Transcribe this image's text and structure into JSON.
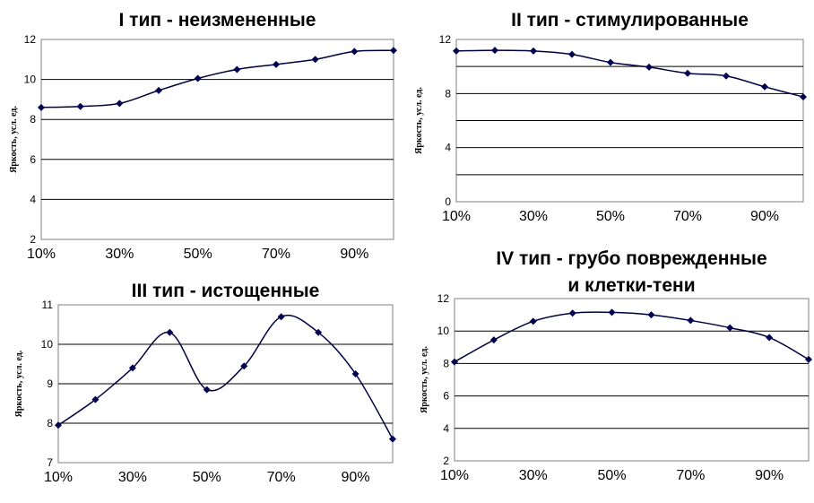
{
  "colors": {
    "series": "#000050",
    "grid": "#000000",
    "frame": "#808080"
  },
  "chart_data": [
    {
      "type": "line",
      "title": [
        "I тип - неизмененные"
      ],
      "ylabel": "Яркость, усл. ед.",
      "ylim": [
        2,
        12
      ],
      "yticks": [
        "2",
        "4",
        "6",
        "8",
        "10",
        "12"
      ],
      "xticks": [
        "10%",
        "30%",
        "50%",
        "70%",
        "90%"
      ],
      "grid": true,
      "x": [
        10,
        20,
        30,
        40,
        50,
        60,
        70,
        80,
        90,
        100
      ],
      "values": [
        8.6,
        8.65,
        8.8,
        9.45,
        10.05,
        10.5,
        10.75,
        11.0,
        11.4,
        11.45
      ]
    },
    {
      "type": "line",
      "title": [
        "II тип - стимулированные"
      ],
      "ylabel": "Яркость, усл. ед.",
      "ylim": [
        0,
        12
      ],
      "yticks": [
        "0",
        "4",
        "8",
        "12"
      ],
      "xticks": [
        "10%",
        "30%",
        "50%",
        "70%",
        "90%"
      ],
      "grid": true,
      "x": [
        10,
        20,
        30,
        40,
        50,
        60,
        70,
        80,
        90,
        100
      ],
      "values": [
        11.15,
        11.2,
        11.15,
        10.9,
        10.3,
        9.95,
        9.5,
        9.3,
        8.5,
        7.75
      ]
    },
    {
      "type": "line",
      "title": [
        "III тип - истощенные"
      ],
      "ylabel": "Яркость, усл. ед.",
      "ylim": [
        7,
        11
      ],
      "yticks": [
        "7",
        "8",
        "9",
        "10",
        "11"
      ],
      "xticks": [
        "10%",
        "30%",
        "50%",
        "70%",
        "90%"
      ],
      "grid": true,
      "x": [
        10,
        20,
        30,
        40,
        50,
        60,
        70,
        80,
        90,
        100
      ],
      "values": [
        7.95,
        8.6,
        9.4,
        10.3,
        8.85,
        9.45,
        10.7,
        10.3,
        9.25,
        7.6
      ]
    },
    {
      "type": "line",
      "title": [
        "IV тип - грубо поврежденные",
        "и клетки-тени"
      ],
      "ylabel": "Яркость, усл. ед.",
      "ylim": [
        2,
        12
      ],
      "yticks": [
        "2",
        "4",
        "6",
        "8",
        "10",
        "12"
      ],
      "xticks": [
        "10%",
        "30%",
        "50%",
        "70%",
        "90%"
      ],
      "grid": true,
      "x": [
        10,
        20,
        30,
        40,
        50,
        60,
        70,
        80,
        90,
        100
      ],
      "values": [
        8.1,
        9.45,
        10.6,
        11.1,
        11.15,
        11.0,
        10.65,
        10.2,
        9.6,
        8.25
      ]
    }
  ]
}
